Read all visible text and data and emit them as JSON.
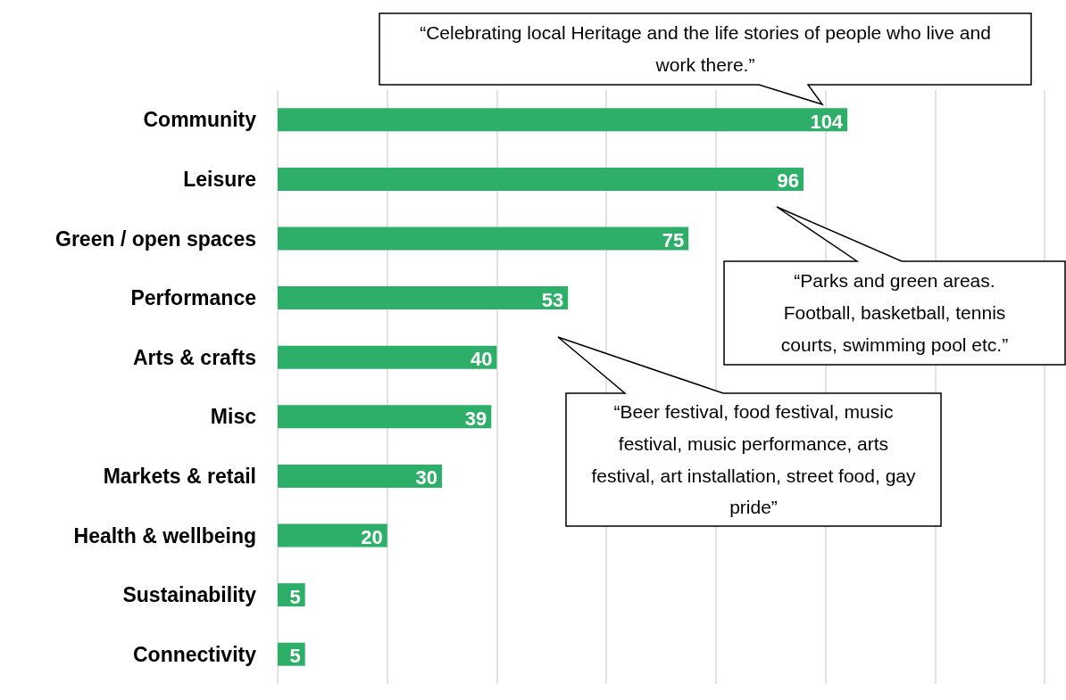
{
  "chart_data": {
    "type": "bar",
    "orientation": "horizontal",
    "categories": [
      "Community",
      "Leisure",
      "Green / open spaces",
      "Performance",
      "Arts & crafts",
      "Misc",
      "Markets & retail",
      "Health & wellbeing",
      "Sustainability",
      "Connectivity"
    ],
    "values": [
      104,
      96,
      75,
      53,
      40,
      39,
      30,
      20,
      5,
      5
    ],
    "color": "#2eaf69",
    "data_labels": true,
    "grid": "x",
    "tick_labels": "y",
    "xlim": [
      0,
      140
    ],
    "xticks": [
      {
        "value": 0,
        "label": null
      },
      {
        "value": 20,
        "label": null
      },
      {
        "value": 40,
        "label": null
      },
      {
        "value": 60,
        "label": null
      },
      {
        "value": 80,
        "label": null
      },
      {
        "value": 100,
        "label": null
      },
      {
        "value": 120,
        "label": null
      },
      {
        "value": 140,
        "label": null
      }
    ],
    "annotations": [
      "“Celebrating local Heritage and the life stories of people who live and work there.”",
      "“Parks and green areas. Football, basketball, tennis courts, swimming pool etc.”",
      "“Beer festival, food festival, music festival, music performance, arts festival, art installation, street food, gay pride”"
    ]
  }
}
